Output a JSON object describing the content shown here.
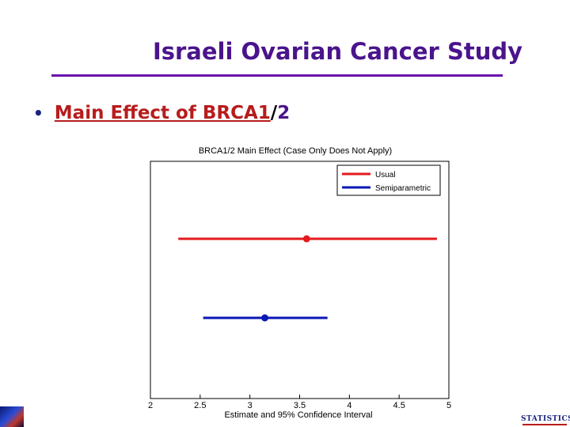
{
  "slide": {
    "title": "Israeli Ovarian Cancer Study",
    "bullet": {
      "main": "Main Effect of BRCA1",
      "separator": "/",
      "tail": "2"
    },
    "logo_right_text": "STATISTICS"
  },
  "colors": {
    "title": "#4a148c",
    "rule": "#6a0dad",
    "usual": "#e41a1c",
    "semiparametric": "#0a17b5"
  },
  "chart_data": {
    "type": "scatter",
    "title": "BRCA1/2 Main Effect (Case Only Does Not Apply)",
    "xlabel": "Estimate and 95% Confidence Interval",
    "ylabel": "",
    "xlim": [
      2,
      5
    ],
    "x_ticks": [
      "2",
      "2.5",
      "3",
      "3.5",
      "4",
      "4.5",
      "5"
    ],
    "grid": false,
    "legend_position": "top-right",
    "series": [
      {
        "name": "Usual",
        "color": "#e41a1c",
        "estimate": 3.57,
        "ci": [
          2.28,
          4.88
        ]
      },
      {
        "name": "Semiparametric",
        "color": "#0a17b5",
        "estimate": 3.15,
        "ci": [
          2.53,
          3.78
        ]
      }
    ]
  }
}
